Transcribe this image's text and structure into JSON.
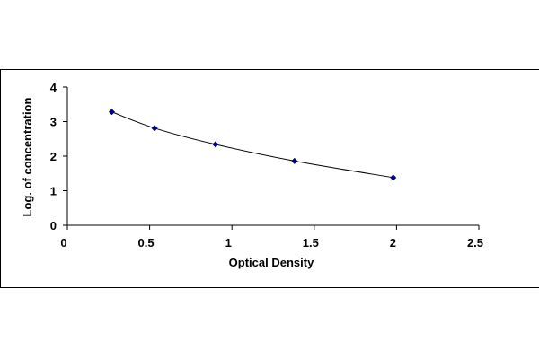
{
  "chart_data": {
    "type": "scatter",
    "xlabel": "Optical Density",
    "ylabel": "Log. of concentration",
    "xlim": [
      0,
      2.5
    ],
    "ylim": [
      0,
      4
    ],
    "xticks": [
      0,
      0.5,
      1,
      1.5,
      2,
      2.5
    ],
    "xtick_labels": [
      "0",
      "0.5",
      "1",
      "1.5",
      "2",
      "2.5"
    ],
    "yticks": [
      0,
      1,
      2,
      3,
      4
    ],
    "ytick_labels": [
      "0",
      "1",
      "2",
      "3",
      "4"
    ],
    "grid": false,
    "series": [
      {
        "x": [
          0.27,
          0.53,
          0.9,
          1.38,
          1.98
        ],
        "y": [
          3.28,
          2.81,
          2.34,
          1.86,
          1.38
        ],
        "marker": "diamond",
        "marker_color": "#000080",
        "line": "smooth",
        "line_color": "#000000"
      }
    ]
  }
}
